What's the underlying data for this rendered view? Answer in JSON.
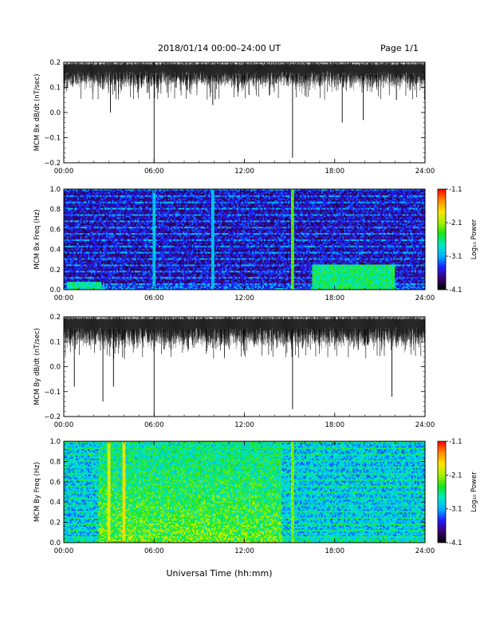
{
  "header": {
    "title": "2018/01/14  00:00–24:00 UT",
    "page": "Page 1/1"
  },
  "xaxis": {
    "title": "Universal Time (hh:mm)",
    "ticks": [
      "00:00",
      "06:00",
      "12:00",
      "18:00",
      "24:00"
    ]
  },
  "colors": {
    "colormap": [
      "#000000",
      "#3b006f",
      "#1d1dff",
      "#00b4ff",
      "#00e8c8",
      "#19e619",
      "#a8f000",
      "#ffe600",
      "#ff8a00",
      "#ff0000"
    ]
  },
  "chart_data": [
    {
      "type": "line",
      "panel": "bx-timeseries",
      "ylabel": "MCM Bx dB/dt (nT/sec)",
      "ylim": [
        -0.2,
        0.2
      ],
      "yticks": [
        "0.2",
        "0.1",
        "0.0",
        "−0.1",
        "−0.2"
      ],
      "xlim_hours": [
        0,
        24
      ],
      "envelope_top": 0.2,
      "typical_lower": 0.12,
      "spikes": [
        {
          "t": 3.1,
          "y": 0.0
        },
        {
          "t": 6.0,
          "y": -0.2
        },
        {
          "t": 9.9,
          "y": 0.03
        },
        {
          "t": 12.3,
          "y": 0.07
        },
        {
          "t": 15.2,
          "y": -0.18
        },
        {
          "t": 18.5,
          "y": -0.04
        },
        {
          "t": 19.9,
          "y": -0.03
        },
        {
          "t": 22.1,
          "y": 0.05
        }
      ]
    },
    {
      "type": "heatmap",
      "panel": "bx-spectrogram",
      "ylabel": "MCM Bx Freq (Hz)",
      "ylim": [
        0.0,
        1.0
      ],
      "yticks": [
        "1.0",
        "0.8",
        "0.6",
        "0.4",
        "0.2",
        "0.0"
      ],
      "xlim_hours": [
        0,
        24
      ],
      "colorbar": {
        "label": "Log₁₀ Power",
        "min": -4.1,
        "max": -1.1,
        "ticks": [
          "-1.1",
          "-2.1",
          "-3.1",
          "-4.1"
        ]
      },
      "background_power": -3.6,
      "vertical_features": [
        {
          "t": 6.0,
          "power": -3.0
        },
        {
          "t": 15.2,
          "power": -2.3
        },
        {
          "t": 9.9,
          "power": -3.0
        }
      ],
      "low_freq_activity": [
        {
          "t_start": 0.2,
          "t_end": 2.5,
          "fmax": 0.08,
          "power": -2.7
        },
        {
          "t_start": 16.5,
          "t_end": 22.0,
          "fmax": 0.25,
          "power": -2.6
        }
      ]
    },
    {
      "type": "line",
      "panel": "by-timeseries",
      "ylabel": "MCM By dB/dt (nT/sec)",
      "ylim": [
        -0.2,
        0.2
      ],
      "yticks": [
        "0.2",
        "0.1",
        "0.0",
        "−0.1",
        "−0.2"
      ],
      "xlim_hours": [
        0,
        24
      ],
      "envelope_top": 0.2,
      "typical_lower": 0.1,
      "spikes": [
        {
          "t": 0.7,
          "y": -0.08
        },
        {
          "t": 2.6,
          "y": -0.14
        },
        {
          "t": 3.3,
          "y": -0.08
        },
        {
          "t": 6.0,
          "y": -0.2
        },
        {
          "t": 15.2,
          "y": -0.17
        },
        {
          "t": 21.8,
          "y": -0.12
        }
      ]
    },
    {
      "type": "heatmap",
      "panel": "by-spectrogram",
      "ylabel": "MCM By Freq (Hz)",
      "ylim": [
        0.0,
        1.0
      ],
      "yticks": [
        "1.0",
        "0.8",
        "0.6",
        "0.4",
        "0.2",
        "0.0"
      ],
      "xlim_hours": [
        0,
        24
      ],
      "colorbar": {
        "label": "Log₁₀ Power",
        "min": -4.1,
        "max": -1.1,
        "ticks": [
          "-1.1",
          "-2.1",
          "-3.1",
          "-4.1"
        ]
      },
      "background_power": -3.0,
      "active_band": {
        "t_start": 2.3,
        "t_end": 14.5,
        "power": -2.3
      },
      "vertical_features": [
        {
          "t": 3.0,
          "power": -1.9
        },
        {
          "t": 4.0,
          "power": -1.8
        },
        {
          "t": 15.2,
          "power": -2.2
        }
      ]
    }
  ]
}
